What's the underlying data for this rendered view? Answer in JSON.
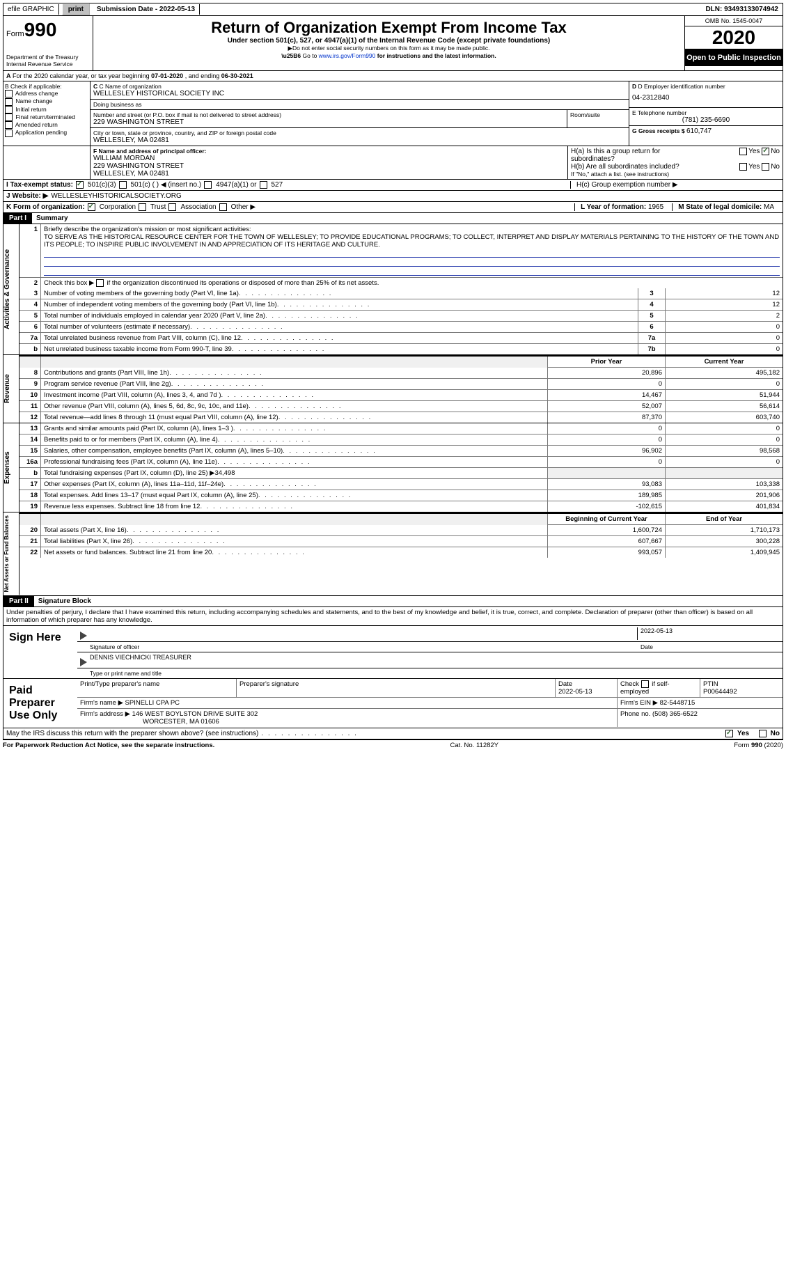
{
  "topbar": {
    "efile": "efile GRAPHIC",
    "print": "print",
    "submission_label": "Submission Date - ",
    "submission_date": "2022-05-13",
    "dln_label": "DLN: ",
    "dln": "93493133074942"
  },
  "header": {
    "form_label": "Form",
    "form_number": "990",
    "dept": "Department of the Treasury",
    "irs": "Internal Revenue Service",
    "title": "Return of Organization Exempt From Income Tax",
    "subtitle": "Under section 501(c), 527, or 4947(a)(1) of the Internal Revenue Code (except private foundations)",
    "ssn_warning": "Do not enter social security numbers on this form as it may be made public.",
    "goto": "Go to ",
    "goto_url": "www.irs.gov/Form990",
    "goto_suffix": " for instructions and the latest information.",
    "omb": "OMB No. 1545-0047",
    "year": "2020",
    "open": "Open to Public Inspection"
  },
  "section_a": {
    "prefix": "A",
    "text": " For the 2020 calendar year, or tax year beginning ",
    "begin": "07-01-2020",
    "mid": "  , and ending ",
    "end": "06-30-2021"
  },
  "col_b": {
    "header": "B Check if applicable:",
    "items": [
      "Address change",
      "Name change",
      "Initial return",
      "Final return/terminated",
      "Amended return",
      "Application pending"
    ]
  },
  "col_c": {
    "name_label": "C Name of organization",
    "name": "WELLESLEY HISTORICAL SOCIETY INC",
    "dba_label": "Doing business as",
    "dba": "",
    "street_label": "Number and street (or P.O. box if mail is not delivered to street address)",
    "room_label": "Room/suite",
    "street": "229 WASHINGTON STREET",
    "city_label": "City or town, state or province, country, and ZIP or foreign postal code",
    "city": "WELLESLEY, MA  02481",
    "officer_label": "F Name and address of principal officer:",
    "officer_name": "WILLIAM MORDAN",
    "officer_street": "229 WASHINGTON STREET",
    "officer_city": "WELLESLEY, MA  02481"
  },
  "col_d": {
    "ein_label": "D Employer identification number",
    "ein": "04-2312840",
    "phone_label": "E Telephone number",
    "phone": "(781) 235-6690",
    "gross_label": "G Gross receipts $ ",
    "gross": "610,747"
  },
  "col_h": {
    "ha_label": "H(a)  Is this a group return for subordinates?",
    "hb_label": "H(b)  Are all subordinates included?",
    "hb_note": "If \"No,\" attach a list. (see instructions)",
    "hc_label": "H(c)  Group exemption number ▶",
    "yes": "Yes",
    "no": "No"
  },
  "line_i": {
    "label": "I    Tax-exempt status:",
    "opt1": "501(c)(3)",
    "opt2": "501(c) (   ) ◀ (insert no.)",
    "opt3": "4947(a)(1) or",
    "opt4": "527"
  },
  "line_j": {
    "label": "J    Website: ▶",
    "value": "WELLESLEYHISTORICALSOCIETY.ORG"
  },
  "line_k": {
    "label": "K Form of organization:",
    "opts": [
      "Corporation",
      "Trust",
      "Association",
      "Other ▶"
    ],
    "l_label": "L Year of formation: ",
    "l_value": "1965",
    "m_label": "M State of legal domicile: ",
    "m_value": "MA"
  },
  "part1": {
    "tag": "Part I",
    "title": "Summary",
    "q1_label": "1",
    "q1_text": "Briefly describe the organization's mission or most significant activities:",
    "mission": "TO SERVE AS THE HISTORICAL RESOURCE CENTER FOR THE TOWN OF WELLESLEY; TO PROVIDE EDUCATIONAL PROGRAMS; TO COLLECT, INTERPRET AND DISPLAY MATERIALS PERTAINING TO THE HISTORY OF THE TOWN AND ITS PEOPLE; TO INSPIRE PUBLIC INVOLVEMENT IN AND APPRECIATION OF ITS HERITAGE AND CULTURE.",
    "q2_text": "Check this box ▶       if the organization discontinued its operations or disposed of more than 25% of its net assets.",
    "vtab_ag": "Activities & Governance",
    "vtab_rev": "Revenue",
    "vtab_exp": "Expenses",
    "vtab_na": "Net Assets or Fund Balances",
    "rows_ag": [
      {
        "n": "3",
        "d": "Number of voting members of the governing body (Part VI, line 1a)",
        "box": "3",
        "v": "12"
      },
      {
        "n": "4",
        "d": "Number of independent voting members of the governing body (Part VI, line 1b)",
        "box": "4",
        "v": "12"
      },
      {
        "n": "5",
        "d": "Total number of individuals employed in calendar year 2020 (Part V, line 2a)",
        "box": "5",
        "v": "2"
      },
      {
        "n": "6",
        "d": "Total number of volunteers (estimate if necessary)",
        "box": "6",
        "v": "0"
      },
      {
        "n": "7a",
        "d": "Total unrelated business revenue from Part VIII, column (C), line 12",
        "box": "7a",
        "v": "0"
      },
      {
        "n": "b",
        "d": "Net unrelated business taxable income from Form 990-T, line 39",
        "box": "7b",
        "v": "0"
      }
    ],
    "col_prior": "Prior Year",
    "col_current": "Current Year",
    "rows_rev": [
      {
        "n": "8",
        "d": "Contributions and grants (Part VIII, line 1h)",
        "p": "20,896",
        "c": "495,182"
      },
      {
        "n": "9",
        "d": "Program service revenue (Part VIII, line 2g)",
        "p": "0",
        "c": "0"
      },
      {
        "n": "10",
        "d": "Investment income (Part VIII, column (A), lines 3, 4, and 7d )",
        "p": "14,467",
        "c": "51,944"
      },
      {
        "n": "11",
        "d": "Other revenue (Part VIII, column (A), lines 5, 6d, 8c, 9c, 10c, and 11e)",
        "p": "52,007",
        "c": "56,614"
      },
      {
        "n": "12",
        "d": "Total revenue—add lines 8 through 11 (must equal Part VIII, column (A), line 12)",
        "p": "87,370",
        "c": "603,740"
      }
    ],
    "rows_exp": [
      {
        "n": "13",
        "d": "Grants and similar amounts paid (Part IX, column (A), lines 1–3 )",
        "p": "0",
        "c": "0"
      },
      {
        "n": "14",
        "d": "Benefits paid to or for members (Part IX, column (A), line 4)",
        "p": "0",
        "c": "0"
      },
      {
        "n": "15",
        "d": "Salaries, other compensation, employee benefits (Part IX, column (A), lines 5–10)",
        "p": "96,902",
        "c": "98,568"
      },
      {
        "n": "16a",
        "d": "Professional fundraising fees (Part IX, column (A), line 11e)",
        "p": "0",
        "c": "0"
      },
      {
        "n": "b",
        "d": "Total fundraising expenses (Part IX, column (D), line 25) ▶34,498",
        "p": "",
        "c": "",
        "blank": true
      },
      {
        "n": "17",
        "d": "Other expenses (Part IX, column (A), lines 11a–11d, 11f–24e)",
        "p": "93,083",
        "c": "103,338"
      },
      {
        "n": "18",
        "d": "Total expenses. Add lines 13–17 (must equal Part IX, column (A), line 25)",
        "p": "189,985",
        "c": "201,906"
      },
      {
        "n": "19",
        "d": "Revenue less expenses. Subtract line 18 from line 12",
        "p": "-102,615",
        "c": "401,834"
      }
    ],
    "col_begin": "Beginning of Current Year",
    "col_end": "End of Year",
    "rows_na": [
      {
        "n": "20",
        "d": "Total assets (Part X, line 16)",
        "p": "1,600,724",
        "c": "1,710,173"
      },
      {
        "n": "21",
        "d": "Total liabilities (Part X, line 26)",
        "p": "607,667",
        "c": "300,228"
      },
      {
        "n": "22",
        "d": "Net assets or fund balances. Subtract line 21 from line 20",
        "p": "993,057",
        "c": "1,409,945"
      }
    ]
  },
  "part2": {
    "tag": "Part II",
    "title": "Signature Block",
    "perjury": "Under penalties of perjury, I declare that I have examined this return, including accompanying schedules and statements, and to the best of my knowledge and belief, it is true, correct, and complete. Declaration of preparer (other than officer) is based on all information of which preparer has any knowledge.",
    "sign_here": "Sign Here",
    "sig_officer": "Signature of officer",
    "sig_date": "2022-05-13",
    "date_label": "Date",
    "officer_print": "DENNIS VIECHNICKI TREASURER",
    "print_label": "Type or print name and title",
    "paid": "Paid Preparer Use Only",
    "prep_name_label": "Print/Type preparer's name",
    "prep_sig_label": "Preparer's signature",
    "prep_date_label": "Date",
    "prep_date": "2022-05-13",
    "check_self": "Check         if self-employed",
    "ptin_label": "PTIN",
    "ptin": "P00644492",
    "firm_name_label": "Firm's name    ▶ ",
    "firm_name": "SPINELLI CPA PC",
    "firm_ein_label": "Firm's EIN ▶ ",
    "firm_ein": "82-5448715",
    "firm_addr_label": "Firm's address ▶ ",
    "firm_addr1": "146 WEST BOYLSTON DRIVE SUITE 302",
    "firm_addr2": "WORCESTER, MA  01606",
    "firm_phone_label": "Phone no. ",
    "firm_phone": "(508) 365-6522",
    "discuss": "May the IRS discuss this return with the preparer shown above? (see instructions)",
    "yes": "Yes",
    "no": "No"
  },
  "footer": {
    "left": "For Paperwork Reduction Act Notice, see the separate instructions.",
    "center": "Cat. No. 11282Y",
    "right": "Form 990 (2020)",
    "right_bold": "990"
  }
}
